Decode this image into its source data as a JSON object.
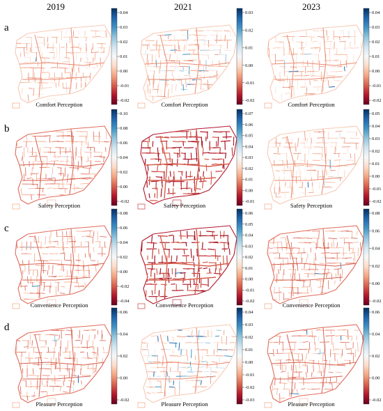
{
  "figure": {
    "years": [
      "2019",
      "2021",
      "2023"
    ],
    "rows": [
      {
        "label": "a",
        "caption": "Comfort Perception",
        "panels": [
          {
            "year": "2019",
            "ticks": [
              "0.04",
              "0.03",
              "0.02",
              "0.01",
              "0.00",
              "-0.01",
              "-0.02"
            ],
            "tone": "faint-red",
            "blue_amount": 0.02
          },
          {
            "year": "2021",
            "ticks": [
              "0.03",
              "0.02",
              "0.01",
              "0.00",
              "-0.01",
              "-0.02"
            ],
            "tone": "faint-red",
            "blue_amount": 0.25
          },
          {
            "year": "2023",
            "ticks": [
              "0.04",
              "0.03",
              "0.02",
              "0.01",
              "0.00",
              "-0.01",
              "-0.02"
            ],
            "tone": "faint-red",
            "blue_amount": 0.05
          }
        ]
      },
      {
        "label": "b",
        "caption": "Safety Perception",
        "panels": [
          {
            "year": "2019",
            "ticks": [
              "0.10",
              "0.08",
              "0.06",
              "0.04",
              "0.02",
              "0.00",
              "-0.02"
            ],
            "tone": "red",
            "blue_amount": 0.02
          },
          {
            "year": "2021",
            "ticks": [
              "0.07",
              "0.06",
              "0.05",
              "0.04",
              "0.03",
              "0.02",
              "0.01",
              "0.00",
              "-0.01"
            ],
            "tone": "dark-red",
            "blue_amount": 0.0
          },
          {
            "year": "2023",
            "ticks": [
              "0.05",
              "0.04",
              "0.03",
              "0.02",
              "0.01",
              "0.00",
              "-0.01",
              "-0.02"
            ],
            "tone": "faint-red",
            "blue_amount": 0.05
          }
        ]
      },
      {
        "label": "c",
        "caption": "Convenience Perception",
        "panels": [
          {
            "year": "2019",
            "ticks": [
              "0.08",
              "0.06",
              "0.04",
              "0.02",
              "0.00",
              "-0.02",
              "-0.04"
            ],
            "tone": "red",
            "blue_amount": 0.02
          },
          {
            "year": "2021",
            "ticks": [
              "0.06",
              "0.05",
              "0.04",
              "0.03",
              "0.02",
              "0.01",
              "0.00",
              "-0.01",
              "-0.02"
            ],
            "tone": "dark-red",
            "blue_amount": 0.02
          },
          {
            "year": "2023",
            "ticks": [
              "0.08",
              "0.06",
              "0.04",
              "0.02",
              "0.00",
              "-0.02"
            ],
            "tone": "red",
            "blue_amount": 0.05
          }
        ]
      },
      {
        "label": "d",
        "caption": "Pleasure Perception",
        "panels": [
          {
            "year": "2019",
            "ticks": [
              "0.06",
              "0.04",
              "0.02",
              "0.00",
              "-0.02"
            ],
            "tone": "red",
            "blue_amount": 0.03
          },
          {
            "year": "2021",
            "ticks": [
              "0.04",
              "0.03",
              "0.02",
              "0.01",
              "0.00",
              "-0.01",
              "-0.02",
              "-0.03"
            ],
            "tone": "faint-red",
            "blue_amount": 0.55
          },
          {
            "year": "2023",
            "ticks": [
              "0.06",
              "0.04",
              "0.02",
              "0.00",
              "-0.02"
            ],
            "tone": "red",
            "blue_amount": 0.1
          }
        ]
      }
    ],
    "colormap": [
      "#67001f",
      "#b2182b",
      "#d6604d",
      "#f4a582",
      "#fddbc7",
      "#f7f7f7",
      "#d1e5f0",
      "#92c5de",
      "#4393c3",
      "#2166ac",
      "#053061"
    ]
  }
}
